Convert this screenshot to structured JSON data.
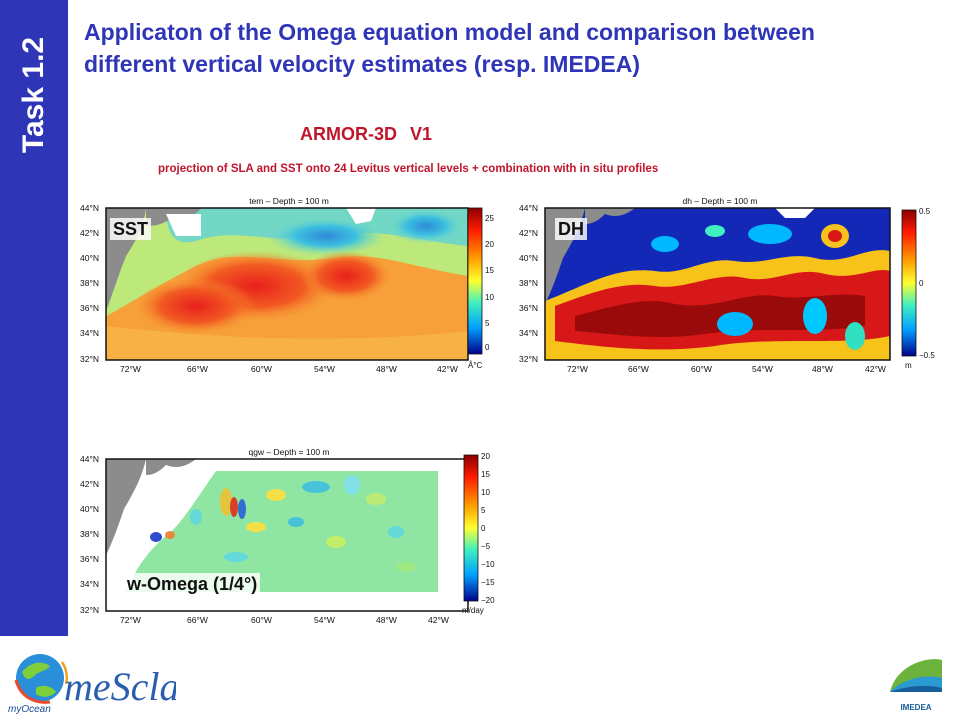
{
  "side_label": "Task 1.2",
  "title_line1": "Applicaton of the Omega equation model and comparison between",
  "title_line2": "different vertical velocity estimates (resp. IMEDEA)",
  "subtitle": "ARMOR-3D V1",
  "note": "projection of SLA and SST onto 24 Levitus vertical levels + combination with in situ profiles",
  "maps": [
    {
      "title": "tem – Depth = 100 m",
      "label": "SST",
      "lat_ticks": [
        "44°N",
        "42°N",
        "40°N",
        "38°N",
        "36°N",
        "34°N",
        "32°N"
      ],
      "lon_ticks": [
        "72°W",
        "66°W",
        "60°W",
        "54°W",
        "48°W",
        "42°W"
      ],
      "colorbar_ticks": [
        "25",
        "20",
        "15",
        "10",
        "5",
        "0"
      ],
      "colorbar_unit": "Å°C"
    },
    {
      "title": "dh – Depth = 100 m",
      "label": "DH",
      "lat_ticks": [
        "44°N",
        "42°N",
        "40°N",
        "38°N",
        "36°N",
        "34°N",
        "32°N"
      ],
      "lon_ticks": [
        "72°W",
        "66°W",
        "60°W",
        "54°W",
        "48°W",
        "42°W"
      ],
      "colorbar_ticks": [
        "0.5",
        "0",
        "−0.5"
      ],
      "colorbar_unit": "m"
    },
    {
      "title": "qgw – Depth = 100 m",
      "label": "w-Omega (1/4°)",
      "lat_ticks": [
        "44°N",
        "42°N",
        "40°N",
        "38°N",
        "36°N",
        "34°N",
        "32°N"
      ],
      "lon_ticks": [
        "72°W",
        "66°W",
        "60°W",
        "54°W",
        "48°W",
        "42°W"
      ],
      "colorbar_ticks": [
        "20",
        "15",
        "10",
        "5",
        "0",
        "−5",
        "−10",
        "−15",
        "−20"
      ],
      "colorbar_unit": "m/day"
    }
  ],
  "logo_left_text": "meScla",
  "logo_left_small": "myOcean",
  "logo_right_text": "IMEDEA",
  "colors": {
    "band": "#2e35b7",
    "title": "#2e35b7",
    "accent": "#c0152b"
  }
}
